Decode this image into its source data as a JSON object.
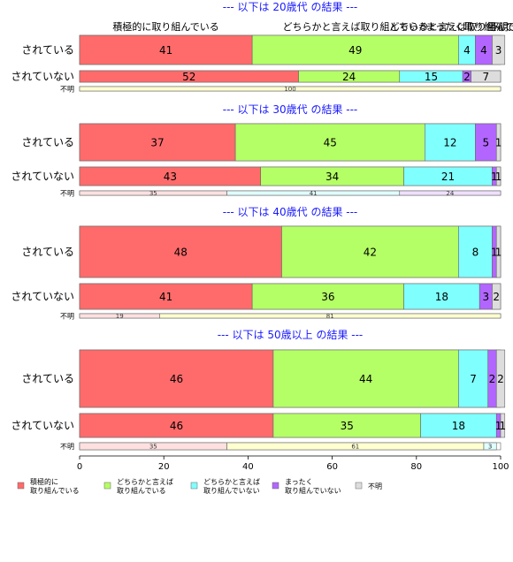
{
  "chart_data": {
    "type": "bar",
    "orientation": "horizontal",
    "stacked": true,
    "xlim": [
      0,
      100
    ],
    "x_ticks": [
      0,
      20,
      40,
      60,
      80,
      100
    ],
    "categories": [
      "積極的に\n取り組んでいる",
      "どちらかと言えば\n取り組んでいる",
      "どちらかと言えば\n取り組んでいない",
      "まったく\n取り組んでいない",
      "不明"
    ],
    "header_labels": [
      "積極的に取り組んでいる",
      "どちらかと言えば取り組んでいる",
      "どちらかと言えば取り組んでいない",
      "まったく取り組んでいない",
      "不明"
    ],
    "colors": [
      "#ff6b6b",
      "#b5ff66",
      "#80ffff",
      "#b266ff",
      "#dddddd"
    ],
    "light_colors": [
      "#ffe0e0",
      "#ffffd0",
      "#e0ffff",
      "#f0e0ff",
      "#f0f0f0"
    ],
    "sections": [
      {
        "title": "--- 以下は 20歳代 の結果 ---",
        "rows": [
          {
            "label": "されている",
            "size": "large",
            "values": [
              41,
              49,
              4,
              4,
              3
            ]
          },
          {
            "label": "されていない",
            "size": "medium",
            "values": [
              52,
              24,
              15,
              2,
              7
            ]
          },
          {
            "label": "不明",
            "size": "small",
            "values": [
              0,
              100,
              0,
              0,
              0
            ]
          }
        ]
      },
      {
        "title": "--- 以下は 30歳代 の結果 ---",
        "rows": [
          {
            "label": "されている",
            "size": "large",
            "values": [
              37,
              45,
              12,
              5,
              1
            ]
          },
          {
            "label": "されていない",
            "size": "medium",
            "values": [
              43,
              34,
              21,
              1,
              1
            ]
          },
          {
            "label": "不明",
            "size": "small",
            "values": [
              35,
              0,
              41,
              24,
              0
            ]
          }
        ]
      },
      {
        "title": "--- 以下は 40歳代 の結果 ---",
        "rows": [
          {
            "label": "されている",
            "size": "large",
            "values": [
              48,
              42,
              8,
              1,
              1
            ]
          },
          {
            "label": "されていない",
            "size": "medium",
            "values": [
              41,
              36,
              18,
              3,
              2
            ]
          },
          {
            "label": "不明",
            "size": "small",
            "values": [
              19,
              81,
              0,
              0,
              0
            ]
          }
        ]
      },
      {
        "title": "--- 以下は 50歳以上 の結果 ---",
        "rows": [
          {
            "label": "されている",
            "size": "large",
            "values": [
              46,
              44,
              7,
              2,
              2
            ]
          },
          {
            "label": "されていない",
            "size": "medium",
            "values": [
              46,
              35,
              18,
              1,
              1
            ]
          },
          {
            "label": "不明",
            "size": "small",
            "values": [
              35,
              61,
              3,
              0,
              0
            ]
          }
        ]
      }
    ]
  }
}
